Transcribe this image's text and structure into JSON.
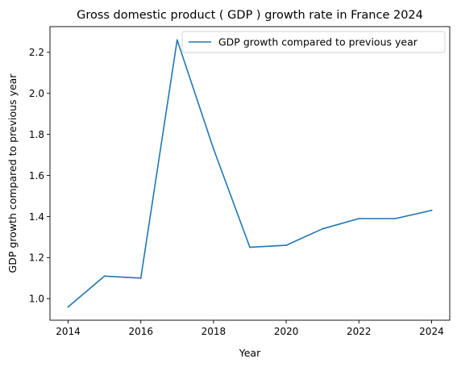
{
  "chart_data": {
    "type": "line",
    "title": "Gross domestic product ( GDP ) growth rate in France 2024",
    "xlabel": "Year",
    "ylabel": "GDP growth compared to previous year",
    "x": [
      2014,
      2015,
      2016,
      2017,
      2018,
      2019,
      2020,
      2021,
      2022,
      2023,
      2024
    ],
    "series": [
      {
        "name": "GDP growth compared to previous year",
        "color": "#1f77b4",
        "values": [
          0.96,
          1.11,
          1.1,
          2.26,
          1.73,
          1.25,
          1.26,
          1.34,
          1.39,
          1.39,
          1.43
        ]
      }
    ],
    "xticks": [
      "2014",
      "2016",
      "2018",
      "2020",
      "2022",
      "2024"
    ],
    "yticks": [
      "1.0",
      "1.2",
      "1.4",
      "1.6",
      "1.8",
      "2.0",
      "2.2"
    ],
    "xlim": [
      2013.5,
      2024.5
    ],
    "ylim": [
      0.895,
      2.325
    ],
    "grid": false,
    "legend_position": "upper-right"
  }
}
